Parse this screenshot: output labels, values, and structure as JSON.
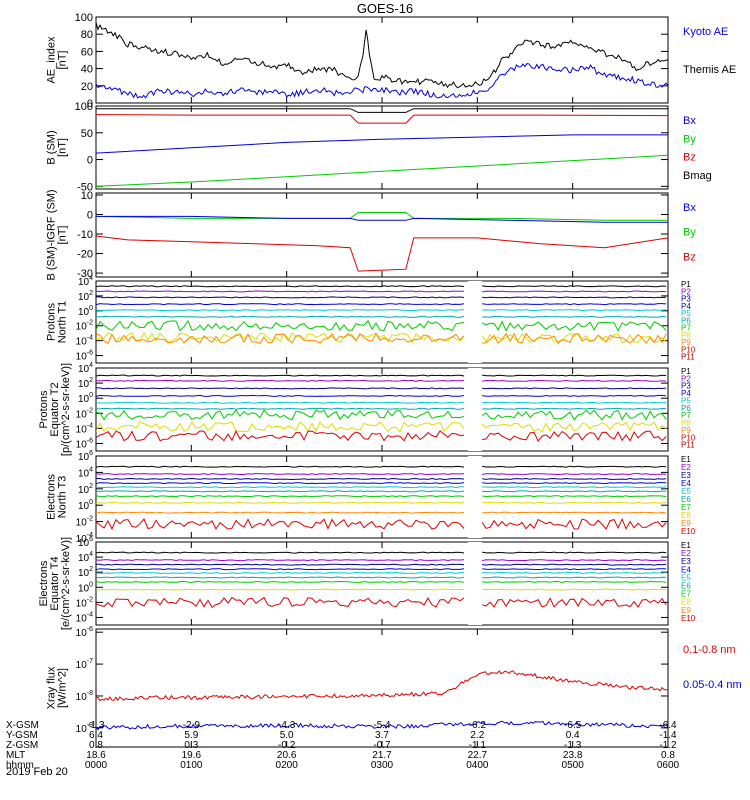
{
  "title": "GOES-16",
  "date_label": "2019 Feb 20",
  "colors": {
    "black": "#000000",
    "blue": "#0000dd",
    "green": "#00cc00",
    "red": "#dd0000",
    "purple": "#9900cc",
    "navy": "#000088",
    "cyan": "#00cccc",
    "yellow": "#dddd00",
    "orange": "#ff8800"
  },
  "chart_data": [
    {
      "type": "line",
      "ylabel": [
        "AE_index",
        "[nT]"
      ],
      "ylim": [
        0,
        100
      ],
      "yticks": [
        "100",
        "80",
        "60",
        "40",
        "20",
        "0"
      ],
      "xlim": [
        0,
        360
      ],
      "legend": [
        {
          "label": "Kyoto AE",
          "color": "#0000dd"
        },
        {
          "label": "Themis AE",
          "color": "#000000"
        }
      ],
      "series": [
        {
          "name": "Themis AE",
          "color": "#000000",
          "x": [
            0,
            5,
            12,
            20,
            30,
            40,
            50,
            60,
            70,
            80,
            90,
            100,
            110,
            120,
            130,
            140,
            150,
            160,
            165,
            168,
            170,
            172,
            175,
            180,
            190,
            200,
            210,
            220,
            230,
            240,
            248,
            255,
            262,
            270,
            280,
            290,
            300,
            310,
            320,
            330,
            340,
            350,
            360
          ],
          "y": [
            90,
            85,
            80,
            68,
            65,
            60,
            58,
            52,
            56,
            45,
            52,
            48,
            42,
            44,
            36,
            40,
            38,
            28,
            30,
            55,
            88,
            55,
            28,
            30,
            26,
            24,
            26,
            22,
            20,
            22,
            30,
            48,
            60,
            70,
            68,
            66,
            72,
            62,
            58,
            52,
            40,
            48,
            50
          ]
        },
        {
          "name": "Kyoto AE",
          "color": "#0000dd",
          "x": [
            0,
            10,
            20,
            30,
            40,
            50,
            60,
            70,
            80,
            90,
            100,
            110,
            120,
            130,
            140,
            150,
            160,
            168,
            170,
            172,
            180,
            190,
            200,
            210,
            220,
            230,
            240,
            248,
            255,
            262,
            270,
            280,
            290,
            300,
            310,
            320,
            330,
            340,
            350,
            360
          ],
          "y": [
            20,
            18,
            10,
            8,
            15,
            12,
            10,
            14,
            10,
            16,
            12,
            14,
            10,
            12,
            16,
            12,
            14,
            14,
            20,
            14,
            16,
            12,
            14,
            10,
            8,
            10,
            12,
            18,
            32,
            40,
            45,
            42,
            40,
            38,
            42,
            32,
            30,
            26,
            22,
            20
          ]
        }
      ]
    },
    {
      "type": "line",
      "ylabel": [
        "B (SM)",
        "[nT]"
      ],
      "ylim": [
        -55,
        100
      ],
      "yticks": [
        "100",
        "50",
        "0",
        "-50"
      ],
      "xlim": [
        0,
        360
      ],
      "legend": [
        {
          "label": "Bx",
          "color": "#0000dd"
        },
        {
          "label": "By",
          "color": "#00cc00"
        },
        {
          "label": "Bz",
          "color": "#dd0000"
        },
        {
          "label": "Bmag",
          "color": "#000000"
        }
      ],
      "series": [
        {
          "name": "Bmag",
          "color": "#000000",
          "x": [
            0,
            160,
            165,
            195,
            200,
            360
          ],
          "y": [
            95,
            95,
            88,
            88,
            95,
            95
          ]
        },
        {
          "name": "Bz",
          "color": "#dd0000",
          "x": [
            0,
            60,
            160,
            165,
            195,
            200,
            280,
            360
          ],
          "y": [
            84,
            83,
            83,
            68,
            68,
            83,
            83,
            82
          ]
        },
        {
          "name": "Bx",
          "color": "#0000dd",
          "x": [
            0,
            60,
            120,
            180,
            240,
            300,
            360
          ],
          "y": [
            12,
            22,
            32,
            38,
            42,
            46,
            46
          ]
        },
        {
          "name": "By",
          "color": "#00cc00",
          "x": [
            0,
            60,
            120,
            180,
            240,
            300,
            360
          ],
          "y": [
            -50,
            -42,
            -32,
            -22,
            -12,
            -2,
            8
          ]
        }
      ]
    },
    {
      "type": "line",
      "ylabel": [
        "B (SM)-IGRF (SM)",
        "[nT]"
      ],
      "ylim": [
        -32,
        11
      ],
      "yticks": [
        "10",
        "0",
        "-10",
        "-20",
        "-30"
      ],
      "xlim": [
        0,
        360
      ],
      "legend": [
        {
          "label": "Bx",
          "color": "#0000dd"
        },
        {
          "label": "By",
          "color": "#00cc00"
        },
        {
          "label": "Bz",
          "color": "#dd0000"
        }
      ],
      "series": [
        {
          "name": "By",
          "color": "#00cc00",
          "x": [
            0,
            60,
            120,
            160,
            165,
            195,
            200,
            260,
            320,
            360
          ],
          "y": [
            -1,
            -2,
            -2,
            -2,
            1,
            1,
            -2,
            -2,
            -3,
            -3
          ]
        },
        {
          "name": "Bx",
          "color": "#0000dd",
          "x": [
            0,
            60,
            120,
            160,
            165,
            195,
            200,
            260,
            320,
            360
          ],
          "y": [
            -1,
            -1,
            -2,
            -2,
            -3,
            -3,
            -2,
            -3,
            -4,
            -4
          ]
        },
        {
          "name": "Bz",
          "color": "#dd0000",
          "x": [
            0,
            20,
            60,
            100,
            140,
            160,
            165,
            195,
            200,
            240,
            280,
            320,
            360
          ],
          "y": [
            -11,
            -13,
            -14,
            -15,
            -16,
            -17,
            -29,
            -28,
            -12,
            -12,
            -15,
            -17,
            -12
          ]
        }
      ]
    },
    {
      "type": "line",
      "yscale": "log",
      "ylabel": [
        "Protons",
        "North T1"
      ],
      "ylim_exp": [
        -7,
        4
      ],
      "yticks": [
        "10^4",
        "10^2",
        "10^0",
        "10^-2",
        "10^-4",
        "10^-6"
      ],
      "xlim": [
        0,
        360
      ],
      "data_gap": [
        234,
        243
      ],
      "channels": [
        {
          "label": "P1",
          "color": "#000000",
          "log10": 3.3
        },
        {
          "label": "P2",
          "color": "#9900cc",
          "log10": 2.6
        },
        {
          "label": "P3",
          "color": "#000088",
          "log10": 1.8
        },
        {
          "label": "P4",
          "color": "#0000dd",
          "log10": 0.9
        },
        {
          "label": "P5",
          "color": "#00cccc",
          "log10": 0.1
        },
        {
          "label": "P6",
          "color": "#00aaaa",
          "log10": -0.8
        },
        {
          "label": "P7",
          "color": "#00cc00",
          "log10": -2.0
        },
        {
          "label": "P8",
          "color": "#dddd00",
          "log10": -3.6
        },
        {
          "label": "P9",
          "color": "#ff8800",
          "log10": -3.7
        },
        {
          "label": "P10",
          "color": "#dd0000",
          "log10": null
        },
        {
          "label": "P11",
          "color": "#aa0000",
          "log10": null
        }
      ]
    },
    {
      "type": "line",
      "yscale": "log",
      "ylabel": [
        "Protons",
        "Equator T2",
        "[p/(cm^2-s-sr-keV)]"
      ],
      "ylim_exp": [
        -7,
        4
      ],
      "yticks": [
        "10^4",
        "10^2",
        "10^0",
        "10^-2",
        "10^-4",
        "10^-6"
      ],
      "xlim": [
        0,
        360
      ],
      "data_gap": [
        234,
        243
      ],
      "channels": [
        {
          "label": "P1",
          "color": "#000000",
          "log10": 3.0
        },
        {
          "label": "P2",
          "color": "#9900cc",
          "log10": 2.3
        },
        {
          "label": "P3",
          "color": "#000088",
          "log10": 1.3
        },
        {
          "label": "P4",
          "color": "#0000dd",
          "log10": 0.3
        },
        {
          "label": "P5",
          "color": "#00cccc",
          "log10": -0.6
        },
        {
          "label": "P6",
          "color": "#00aaaa",
          "log10": -1.4
        },
        {
          "label": "P7",
          "color": "#00cc00",
          "log10": -2.2
        },
        {
          "label": "P8",
          "color": "#dddd00",
          "log10": -3.8
        },
        {
          "label": "P9",
          "color": "#ff8800",
          "log10": null
        },
        {
          "label": "P10",
          "color": "#dd0000",
          "log10": -5.0
        },
        {
          "label": "P11",
          "color": "#aa0000",
          "log10": null
        }
      ]
    },
    {
      "type": "line",
      "yscale": "log",
      "ylabel": [
        "Electrons",
        "North T3"
      ],
      "ylim_exp": [
        -4,
        6
      ],
      "yticks": [
        "10^6",
        "10^4",
        "10^2",
        "10^0",
        "10^-2",
        "10^-4"
      ],
      "xlim": [
        0,
        360
      ],
      "data_gap": [
        234,
        243
      ],
      "channels": [
        {
          "label": "E1",
          "color": "#000000",
          "log10": 4.7
        },
        {
          "label": "E2",
          "color": "#9900cc",
          "log10": 3.8
        },
        {
          "label": "E3",
          "color": "#000088",
          "log10": 3.2
        },
        {
          "label": "E4",
          "color": "#0000dd",
          "log10": 2.7
        },
        {
          "label": "E5",
          "color": "#00cccc",
          "log10": 2.2
        },
        {
          "label": "E6",
          "color": "#00aaaa",
          "log10": 1.7
        },
        {
          "label": "E7",
          "color": "#00cc00",
          "log10": 1.1
        },
        {
          "label": "E8",
          "color": "#dddd00",
          "log10": 0.3
        },
        {
          "label": "E9",
          "color": "#ff8800",
          "log10": -0.9
        },
        {
          "label": "E10",
          "color": "#dd0000",
          "log10": -2.3
        }
      ]
    },
    {
      "type": "line",
      "yscale": "log",
      "ylabel": [
        "Electrons",
        "Equator T4",
        "[e/(cm^2-s-sr-keV)]"
      ],
      "ylim_exp": [
        -5,
        6
      ],
      "yticks": [
        "10^6",
        "10^4",
        "10^2",
        "10^0",
        "10^-2",
        "10^-4"
      ],
      "xlim": [
        0,
        360
      ],
      "data_gap": [
        234,
        243
      ],
      "channels": [
        {
          "label": "E1",
          "color": "#000000",
          "log10": 4.6
        },
        {
          "label": "E2",
          "color": "#9900cc",
          "log10": 3.6
        },
        {
          "label": "E3",
          "color": "#000088",
          "log10": 3.0
        },
        {
          "label": "E4",
          "color": "#0000dd",
          "log10": 2.4
        },
        {
          "label": "E5",
          "color": "#00cccc",
          "log10": 1.9
        },
        {
          "label": "E6",
          "color": "#00aaaa",
          "log10": 1.3
        },
        {
          "label": "E7",
          "color": "#00cc00",
          "log10": 0.7
        },
        {
          "label": "E8",
          "color": "#dddd00",
          "log10": -0.3
        },
        {
          "label": "E9",
          "color": "#ff8800",
          "log10": null
        },
        {
          "label": "E10",
          "color": "#dd0000",
          "log10": -2.0
        }
      ]
    },
    {
      "type": "line",
      "yscale": "log",
      "ylabel": [
        "Xray flux",
        "[W/m^2]"
      ],
      "ylim_exp": [
        -9.6,
        -5.9
      ],
      "yticks": [
        "10^-6",
        "10^-7",
        "10^-8",
        "10^-9"
      ],
      "xlim": [
        0,
        360
      ],
      "legend": [
        {
          "label": "0.1-0.8 nm",
          "color": "#dd0000"
        },
        {
          "label": "0.05-0.4 nm",
          "color": "#0000dd"
        }
      ],
      "series": [
        {
          "name": "0.1-0.8 nm",
          "color": "#dd0000",
          "x": [
            0,
            40,
            80,
            120,
            160,
            200,
            220,
            230,
            240,
            250,
            260,
            270,
            280,
            300,
            320,
            340,
            360
          ],
          "y": [
            -8.1,
            -8.05,
            -8.05,
            -8.0,
            -8.0,
            -7.95,
            -7.9,
            -7.6,
            -7.35,
            -7.25,
            -7.25,
            -7.3,
            -7.4,
            -7.55,
            -7.65,
            -7.75,
            -7.8
          ]
        },
        {
          "name": "0.05-0.4 nm",
          "color": "#0000dd",
          "x": [
            0,
            40,
            80,
            120,
            160,
            200,
            240,
            280,
            320,
            360
          ],
          "y": [
            -9.0,
            -8.95,
            -8.95,
            -8.92,
            -8.95,
            -8.95,
            -8.85,
            -8.85,
            -8.9,
            -8.95
          ]
        }
      ]
    }
  ],
  "x_axis": {
    "row_labels": [
      "X-GSM",
      "Y-GSM",
      "Z-GSM",
      "MLT",
      "hhmm"
    ],
    "columns": [
      [
        "-1.3",
        "6.4",
        "0.8",
        "18.6",
        "0000"
      ],
      [
        "-2.9",
        "5.9",
        "0.3",
        "19.6",
        "0100"
      ],
      [
        "-4.3",
        "5.0",
        "-0.2",
        "20.6",
        "0200"
      ],
      [
        "-5.4",
        "3.7",
        "-0.7",
        "21.7",
        "0300"
      ],
      [
        "-6.2",
        "2.2",
        "-1.1",
        "22.7",
        "0400"
      ],
      [
        "-6.5",
        "0.4",
        "-1.3",
        "23.8",
        "0500"
      ],
      [
        "-6.4",
        "-1.4",
        "-1.2",
        "0.8",
        "0600"
      ]
    ]
  }
}
